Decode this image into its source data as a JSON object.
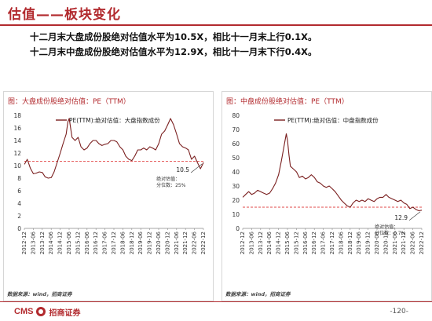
{
  "header": {
    "title": "估值——板块变化",
    "summary_1": "十二月末大盘成份股绝对估值水平为10.5X，相比十一月末上行0.1X。",
    "summary_2": "十二月末中盘成份股绝对估值水平为12.9X，相比十一月末下行0.4X。"
  },
  "footer": {
    "brand_cms": "CMS",
    "brand_name": "招商证券",
    "page_number": "-120-"
  },
  "colors": {
    "accent": "#b22a2e",
    "line": "#7a1f1f",
    "ref_line": "#e24a4a"
  },
  "chart_data": [
    {
      "type": "line",
      "panel_title": "图：大盘成份股绝对估值：PE（TTM）",
      "legend": "PE(TTM):绝对估值：大盘指数成份",
      "source": "数据来源：wind，招商证券",
      "ylim": [
        0,
        18
      ],
      "yticks": [
        0,
        2,
        4,
        6,
        8,
        10,
        12,
        14,
        16,
        18
      ],
      "xlim": [
        2012.917,
        2022.917
      ],
      "xtick_labels": [
        "2012-12",
        "2013-06",
        "2013-12",
        "2014-06",
        "2014-12",
        "2015-06",
        "2015-12",
        "2016-06",
        "2016-12",
        "2017-06",
        "2017-12",
        "2018-06",
        "2018-12",
        "2019-06",
        "2019-12",
        "2020-06",
        "2020-12",
        "2021-06",
        "2021-12",
        "2022-06",
        "2022-12"
      ],
      "reference_line": 10.7,
      "annotation": {
        "value": "10.5",
        "label_1": "绝对估值：",
        "label_2": "分位数：25%"
      },
      "series": [
        {
          "x": [
            2012.92,
            2013.08,
            2013.25,
            2013.42,
            2013.58,
            2013.75,
            2013.92,
            2014.08,
            2014.25,
            2014.42,
            2014.58,
            2014.75,
            2014.92,
            2015.08,
            2015.25,
            2015.35,
            2015.42,
            2015.5,
            2015.58,
            2015.75,
            2015.92,
            2016.08,
            2016.25,
            2016.42,
            2016.58,
            2016.75,
            2016.92,
            2017.08,
            2017.25,
            2017.42,
            2017.58,
            2017.75,
            2017.92,
            2018.08,
            2018.25,
            2018.42,
            2018.58,
            2018.75,
            2018.92,
            2019.08,
            2019.25,
            2019.42,
            2019.58,
            2019.75,
            2019.92,
            2020.08,
            2020.25,
            2020.42,
            2020.58,
            2020.75,
            2020.92,
            2021.08,
            2021.25,
            2021.42,
            2021.58,
            2021.75,
            2021.92,
            2022.08,
            2022.25,
            2022.42,
            2022.58,
            2022.75,
            2022.92
          ],
          "y": [
            10.2,
            11.0,
            9.6,
            8.7,
            8.8,
            9.0,
            8.9,
            8.2,
            8.0,
            8.1,
            9.0,
            10.5,
            12.0,
            13.5,
            15.0,
            17.0,
            17.5,
            16.0,
            14.5,
            14.0,
            14.5,
            13.0,
            12.5,
            12.8,
            13.5,
            14.0,
            14.0,
            13.5,
            13.2,
            13.4,
            13.5,
            14.0,
            14.0,
            13.8,
            13.0,
            12.5,
            11.5,
            11.0,
            10.8,
            11.5,
            12.5,
            12.5,
            12.8,
            12.5,
            13.0,
            12.8,
            12.5,
            13.5,
            15.0,
            15.5,
            16.5,
            17.5,
            16.5,
            15.0,
            13.5,
            13.0,
            12.8,
            12.5,
            11.0,
            11.5,
            10.5,
            9.5,
            10.5
          ]
        }
      ]
    },
    {
      "type": "line",
      "panel_title": "图：中盘成份股绝对估值：PE（TTM）",
      "legend": "PE(TTM):绝对估值：中盘指数成份",
      "source": "数据来源：wind，招商证券",
      "ylim": [
        0,
        80
      ],
      "yticks": [
        0,
        10,
        20,
        30,
        40,
        50,
        60,
        70,
        80
      ],
      "xlim": [
        2012.917,
        2022.917
      ],
      "xtick_labels": [
        "2012-12",
        "2013-06",
        "2013-12",
        "2014-06",
        "2014-12",
        "2015-06",
        "2015-12",
        "2016-06",
        "2016-12",
        "2017-06",
        "2017-12",
        "2018-06",
        "2018-12",
        "2019-06",
        "2019-12",
        "2020-06",
        "2020-12",
        "2021-06",
        "2021-12",
        "2022-06",
        "2022-12"
      ],
      "reference_line": 15,
      "annotation": {
        "value": "12.9",
        "label_1": "绝对估值：",
        "label_2": "分位数：0.7%"
      },
      "series": [
        {
          "x": [
            2012.92,
            2013.08,
            2013.25,
            2013.42,
            2013.58,
            2013.75,
            2013.92,
            2014.08,
            2014.25,
            2014.42,
            2014.58,
            2014.75,
            2014.92,
            2015.08,
            2015.25,
            2015.35,
            2015.42,
            2015.5,
            2015.58,
            2015.75,
            2015.92,
            2016.08,
            2016.25,
            2016.42,
            2016.58,
            2016.75,
            2016.92,
            2017.08,
            2017.25,
            2017.42,
            2017.58,
            2017.75,
            2017.92,
            2018.08,
            2018.25,
            2018.42,
            2018.58,
            2018.75,
            2018.92,
            2019.08,
            2019.25,
            2019.42,
            2019.58,
            2019.75,
            2019.92,
            2020.08,
            2020.25,
            2020.42,
            2020.58,
            2020.75,
            2020.92,
            2021.08,
            2021.25,
            2021.42,
            2021.58,
            2021.75,
            2021.92,
            2022.08,
            2022.25,
            2022.42,
            2022.58,
            2022.75,
            2022.92
          ],
          "y": [
            22,
            24,
            26,
            24,
            25,
            27,
            26,
            25,
            24,
            25,
            28,
            32,
            38,
            48,
            60,
            67,
            62,
            52,
            44,
            42,
            40,
            36,
            37,
            35,
            36,
            38,
            36,
            33,
            32,
            30,
            29,
            30,
            28,
            26,
            23,
            20,
            18,
            16,
            15,
            18,
            20,
            19,
            20,
            19,
            21,
            20,
            19,
            21,
            22,
            22,
            24,
            22,
            21,
            20,
            19,
            20,
            18,
            17,
            14,
            15,
            13.5,
            12.5,
            12.9
          ]
        }
      ]
    }
  ]
}
